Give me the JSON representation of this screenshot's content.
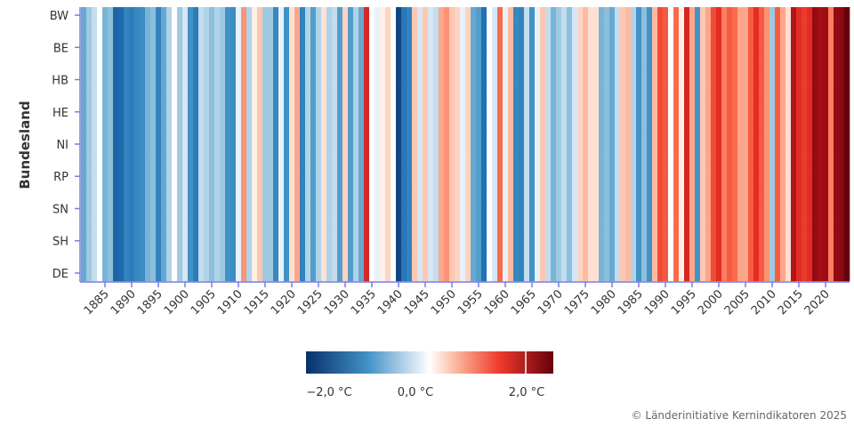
{
  "chart_data": {
    "type": "heatmap",
    "ylabel": "Bundesland",
    "xlabel": "",
    "rows": [
      "BW",
      "",
      "BE",
      "",
      "HB",
      "",
      "HE",
      "",
      "NI",
      "",
      "RP",
      "",
      "SN",
      "",
      "SH",
      "",
      "DE"
    ],
    "year_start": 1881,
    "year_end": 2024,
    "x_ticks": [
      1885,
      1890,
      1895,
      1900,
      1905,
      1910,
      1915,
      1920,
      1925,
      1930,
      1935,
      1940,
      1945,
      1950,
      1955,
      1960,
      1965,
      1970,
      1975,
      1980,
      1985,
      1990,
      1995,
      2000,
      2005,
      2010,
      2015,
      2020
    ],
    "unit": "°C",
    "values_note_all_rows": "",
    "values": [
      -0.8,
      -0.5,
      -0.3,
      0.0,
      -0.7,
      -0.6,
      -1.8,
      -1.7,
      -1.3,
      -1.4,
      -1.2,
      -1.1,
      -0.7,
      -0.6,
      -1.3,
      -0.8,
      -0.4,
      0.0,
      -0.5,
      -0.2,
      -1.0,
      -1.4,
      -0.3,
      -0.4,
      -0.6,
      -0.4,
      -0.5,
      -1.0,
      -1.1,
      -0.1,
      0.7,
      -0.4,
      0.1,
      0.4,
      -0.5,
      -0.5,
      -1.2,
      -0.1,
      -1.0,
      0.2,
      0.6,
      -1.3,
      -0.4,
      -0.9,
      -0.4,
      0.2,
      -0.4,
      -0.3,
      -0.9,
      0.3,
      -0.9,
      -0.4,
      -0.8,
      1.4,
      0.0,
      -0.1,
      0.1,
      0.3,
      0.0,
      -2.2,
      -1.5,
      -1.3,
      0.4,
      -0.2,
      0.4,
      -0.2,
      -0.3,
      0.6,
      0.7,
      0.4,
      0.3,
      -0.1,
      0.3,
      -0.8,
      -0.9,
      -1.6,
      0.0,
      -0.2,
      0.9,
      -0.1,
      0.5,
      -1.2,
      -1.3,
      -0.3,
      -1.0,
      -0.1,
      0.4,
      -0.3,
      -0.7,
      -0.5,
      -0.3,
      -0.6,
      -0.2,
      0.3,
      0.5,
      0.2,
      0.2,
      -0.7,
      -0.6,
      -0.8,
      -0.3,
      0.4,
      0.5,
      -0.4,
      -1.0,
      -0.6,
      -1.0,
      0.5,
      1.1,
      1.0,
      0.0,
      0.9,
      0.1,
      1.4,
      0.6,
      -1.0,
      0.4,
      0.6,
      1.1,
      1.3,
      0.8,
      1.0,
      0.9,
      0.6,
      0.6,
      1.0,
      1.3,
      1.0,
      0.7,
      -0.5,
      1.0,
      0.6,
      0.2,
      1.7,
      1.3,
      1.2,
      1.3,
      2.0,
      1.8,
      1.9,
      0.8,
      2.0,
      2.1,
      2.5
    ],
    "colorbar": {
      "labels": [
        "−2,0 °C",
        "0,0 °C",
        "2,0 °C"
      ],
      "colors": {
        "cold_extreme": "#08306b",
        "cold": "#4292c6",
        "neutral": "#ffffff",
        "warm": "#ef3b2c",
        "warm_extreme": "#67000d"
      }
    },
    "axis_color": "#7b7be0",
    "grid": false,
    "legend": "bottom-center"
  },
  "footer": {
    "copyright": "© Länderinitiative Kernindikatoren 2025"
  }
}
